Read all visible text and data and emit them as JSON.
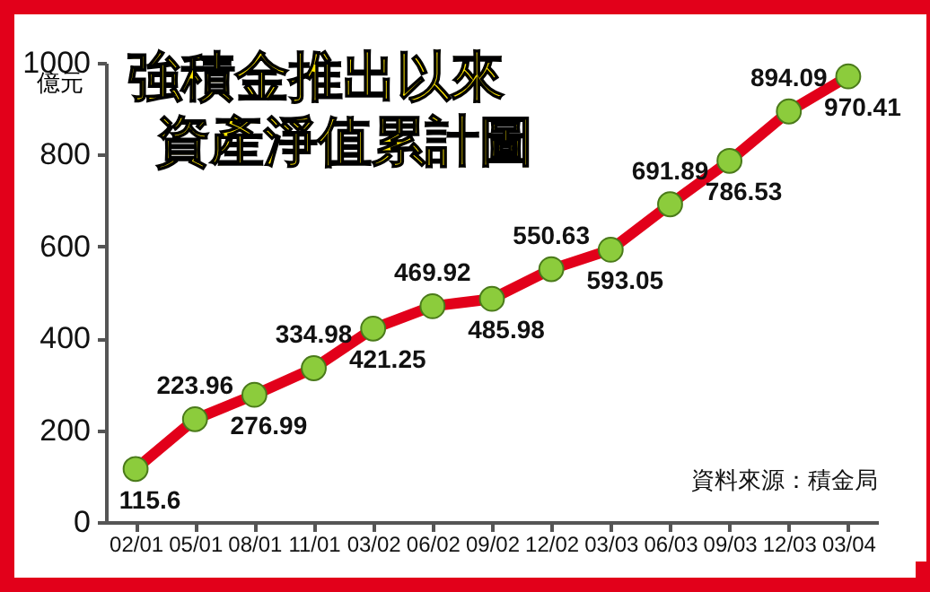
{
  "chart_data": {
    "type": "line",
    "title": "強積金推出以來資產淨值累計圖",
    "ylabel": "億元",
    "categories": [
      "02/01",
      "05/01",
      "08/01",
      "11/01",
      "03/02",
      "06/02",
      "09/02",
      "12/02",
      "03/03",
      "06/03",
      "09/03",
      "12/03",
      "03/04"
    ],
    "series": [
      {
        "color": "#e2001a",
        "values": [
          115.6,
          223.96,
          276.99,
          334.98,
          421.25,
          469.92,
          485.98,
          550.63,
          593.05,
          691.89,
          786.53,
          894.09,
          970.41
        ]
      }
    ],
    "ylim": [
      0,
      1000
    ],
    "yticks": [
      0,
      200,
      400,
      600,
      800,
      1000
    ],
    "data_labels": true,
    "marker": "circle",
    "annotations": [
      "資料來源：積金局"
    ]
  }
}
